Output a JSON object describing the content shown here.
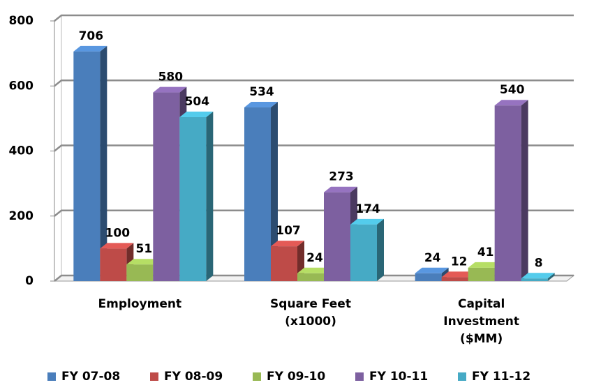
{
  "chart_data": {
    "type": "bar",
    "categories": [
      "Employment",
      "Square Feet (x1000)",
      "Capital Investment ($MM)"
    ],
    "series": [
      {
        "name": "FY 07-08",
        "color": "#4a7ebb",
        "values": [
          706,
          534,
          24
        ]
      },
      {
        "name": "FY 08-09",
        "color": "#be4b48",
        "values": [
          100,
          107,
          12
        ]
      },
      {
        "name": "FY 09-10",
        "color": "#98b954",
        "values": [
          51,
          24,
          41
        ]
      },
      {
        "name": "FY 10-11",
        "color": "#7d60a0",
        "values": [
          580,
          273,
          540
        ]
      },
      {
        "name": "FY 11-12",
        "color": "#46aac5",
        "values": [
          504,
          174,
          8
        ]
      }
    ],
    "ylim": [
      0,
      800
    ],
    "yticks": [
      0,
      200,
      400,
      600,
      800
    ],
    "grid": true,
    "legend": "bottom"
  }
}
